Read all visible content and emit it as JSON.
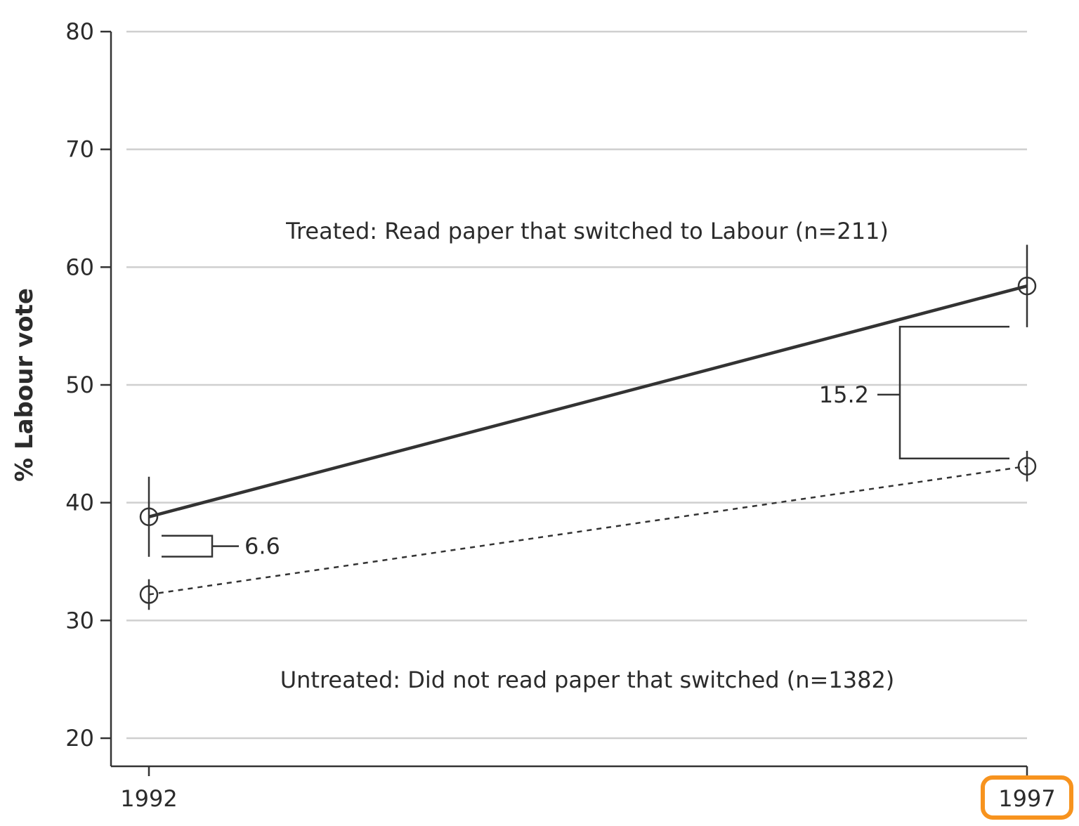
{
  "chart_data": {
    "type": "line",
    "ylabel": "% Labour vote",
    "xlabel": "",
    "ylim": [
      20,
      80
    ],
    "yticks": [
      20,
      30,
      40,
      50,
      60,
      70,
      80
    ],
    "x": [
      "1992",
      "1997"
    ],
    "grid": true,
    "series": [
      {
        "name": "Treated: Read paper that switched to Labour (n=211)",
        "values": [
          38.8,
          58.4
        ],
        "ci": [
          [
            35.4,
            42.2
          ],
          [
            54.9,
            61.9
          ]
        ],
        "style": "solid",
        "color": "#333333"
      },
      {
        "name": "Untreated: Did not read paper that switched (n=1382)",
        "values": [
          32.2,
          43.1
        ],
        "ci": [
          [
            30.9,
            33.5
          ],
          [
            41.8,
            44.4
          ]
        ],
        "style": "dotted",
        "color": "#333333"
      }
    ],
    "annotations": [
      {
        "text": "6.6",
        "x": "1992"
      },
      {
        "text": "15.2",
        "x": "1997"
      }
    ],
    "highlighted_tick": "1997",
    "highlight_color": "#F7931E"
  }
}
